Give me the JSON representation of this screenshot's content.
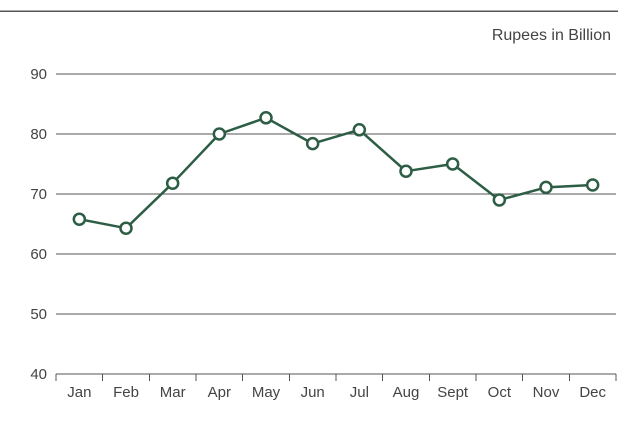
{
  "chart_data": {
    "type": "line",
    "title": "",
    "unit_label": "Rupees in Billion",
    "xlabel": "",
    "ylabel": "",
    "categories": [
      "Jan",
      "Feb",
      "Mar",
      "Apr",
      "May",
      "Jun",
      "Jul",
      "Aug",
      "Sept",
      "Oct",
      "Nov",
      "Dec"
    ],
    "series": [
      {
        "values": [
          65.8,
          64.3,
          71.8,
          80.0,
          82.7,
          78.4,
          80.7,
          73.8,
          75.0,
          69.0,
          71.1,
          71.5
        ]
      }
    ],
    "ylim": [
      40,
      90
    ],
    "yticks": [
      40,
      50,
      60,
      70,
      80,
      90
    ],
    "grid": true,
    "colors": {
      "line": "#2d5e45",
      "marker_fill": "#ffffff",
      "grid": "#555555",
      "text": "#444444"
    }
  }
}
